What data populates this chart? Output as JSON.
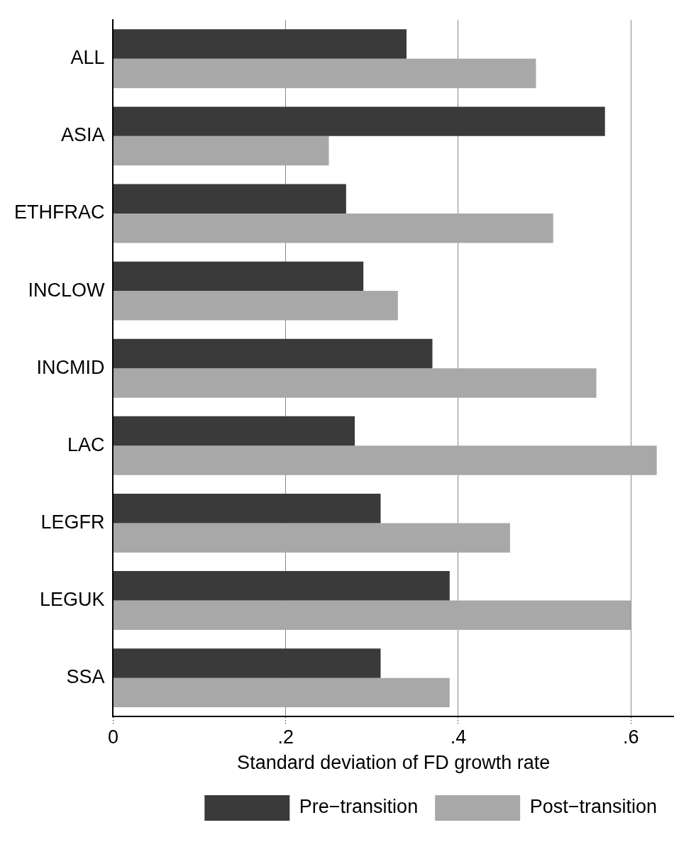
{
  "chart_data": {
    "type": "bar",
    "orientation": "horizontal",
    "xlabel": "Standard deviation of FD growth rate",
    "categories": [
      "ALL",
      "ASIA",
      "ETHFRAC",
      "INCLOW",
      "INCMID",
      "LAC",
      "LEGFR",
      "LEGUK",
      "SSA"
    ],
    "series": [
      {
        "name": "Pre−transition",
        "color": "#3a3a3a",
        "values": [
          0.34,
          0.57,
          0.27,
          0.29,
          0.37,
          0.28,
          0.31,
          0.39,
          0.31
        ]
      },
      {
        "name": "Post−transition",
        "color": "#a8a8a8",
        "values": [
          0.49,
          0.25,
          0.51,
          0.33,
          0.56,
          0.63,
          0.46,
          0.6,
          0.39
        ]
      }
    ],
    "xlim": [
      0,
      0.65
    ],
    "xticks": [
      0,
      {
        "value": 0.2,
        "label": ".2"
      },
      {
        "value": 0.4,
        "label": ".4"
      },
      {
        "value": 0.6,
        "label": ".6"
      }
    ],
    "grid": "x",
    "legend": "bottom"
  }
}
